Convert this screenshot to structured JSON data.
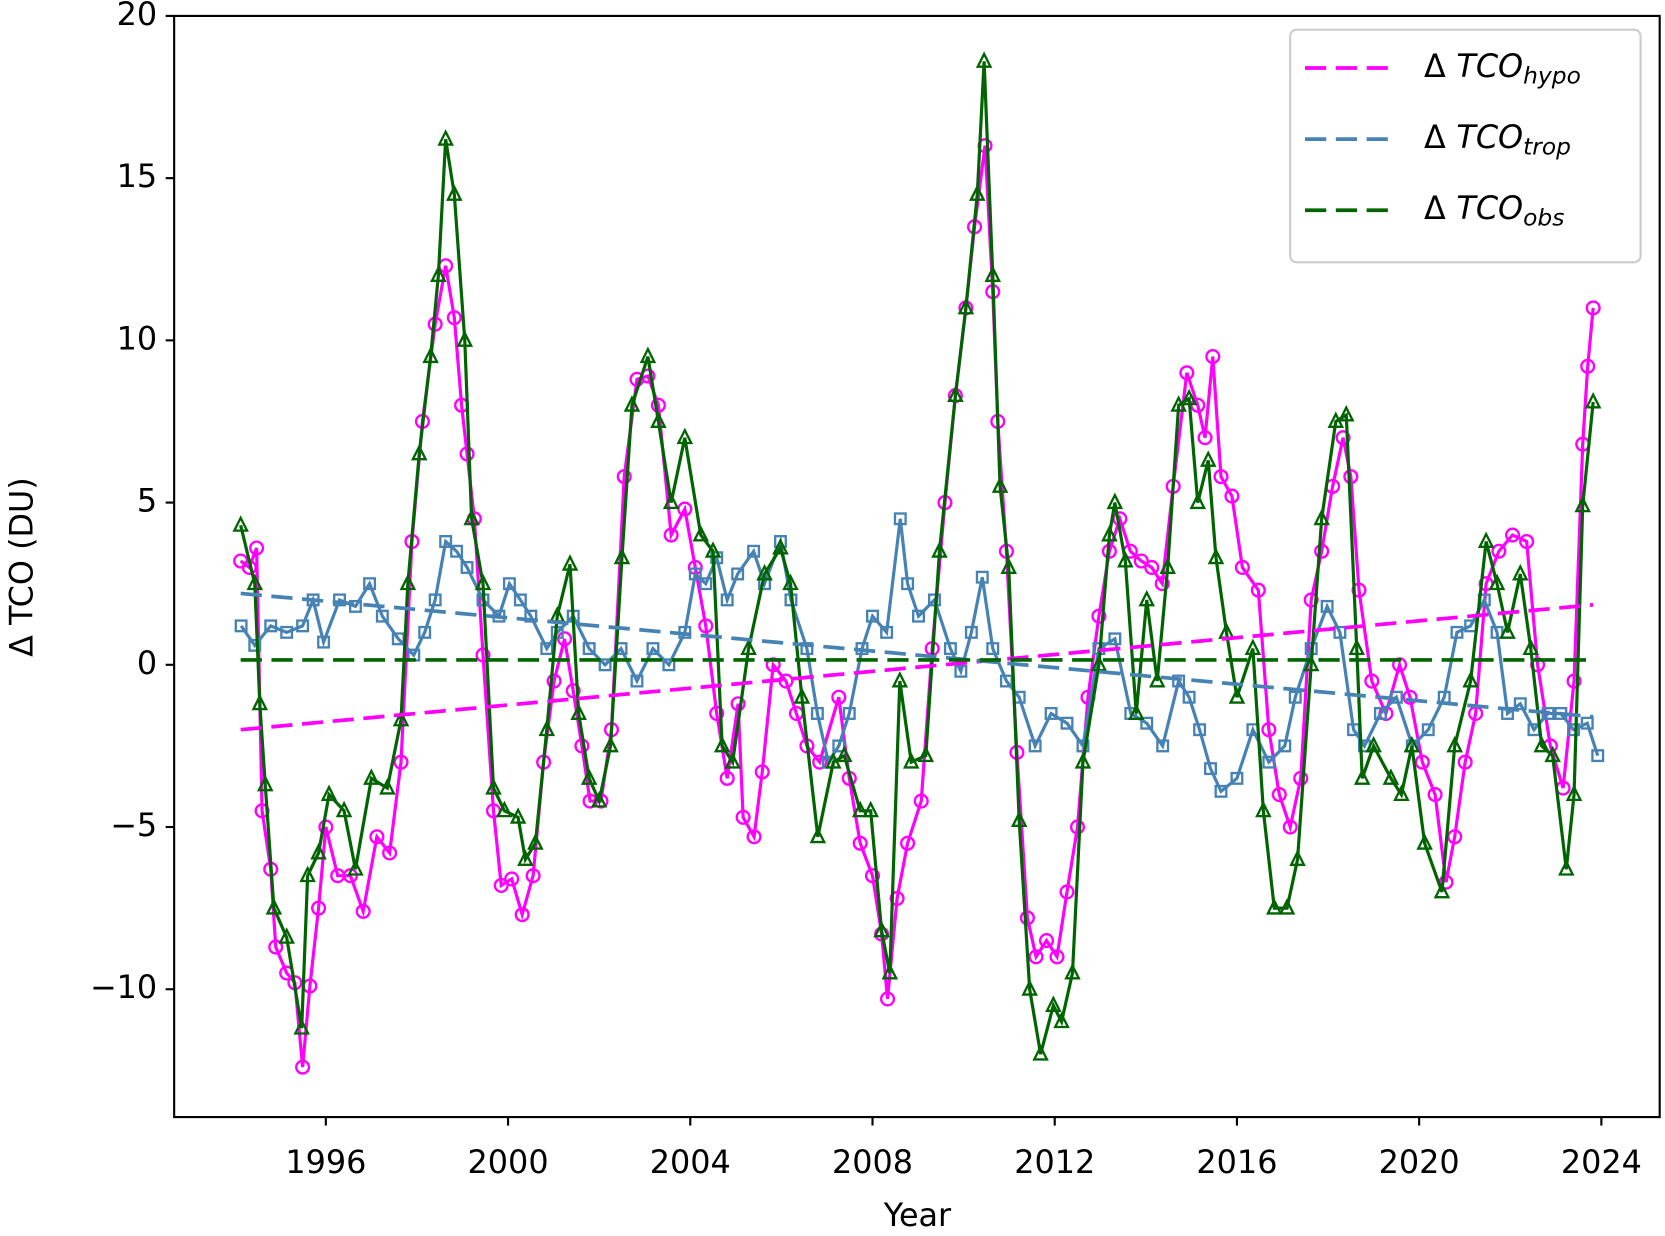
{
  "chart_data": {
    "type": "line",
    "xlabel": "Year",
    "ylabel": "Δ TCO (DU)",
    "xlim": [
      1992.67,
      2025.28
    ],
    "ylim": [
      -13.94,
      20
    ],
    "xticks": [
      1996,
      2000,
      2004,
      2008,
      2012,
      2016,
      2020,
      2024
    ],
    "yticks": [
      {
        "value": -10,
        "label": "−10"
      },
      {
        "value": -5,
        "label": "−5"
      },
      0,
      5,
      10,
      15,
      20
    ],
    "legend": "upper right",
    "trend_x": [
      1994.13,
      2023.82
    ],
    "series": [
      {
        "name_symbol": "Δ",
        "name": "TCO",
        "name_sub": "hypo",
        "color": "#ff00ff",
        "marker": "circle",
        "trend": [
          -2.0,
          1.85
        ],
        "x": [
          1994.13,
          1994.32,
          1994.48,
          1994.6,
          1994.79,
          1994.9,
          1995.14,
          1995.32,
          1995.49,
          1995.65,
          1995.84,
          1996.0,
          1996.26,
          1996.54,
          1996.82,
          1997.12,
          1997.4,
          1997.65,
          1997.89,
          1998.12,
          1998.4,
          1998.63,
          1998.82,
          1998.98,
          1999.1,
          1999.26,
          1999.45,
          1999.68,
          1999.85,
          2000.08,
          2000.31,
          2000.55,
          2000.78,
          2001.01,
          2001.24,
          2001.43,
          2001.62,
          2001.8,
          2002.04,
          2002.27,
          2002.55,
          2002.83,
          2003.07,
          2003.3,
          2003.58,
          2003.88,
          2004.11,
          2004.34,
          2004.58,
          2004.81,
          2005.05,
          2005.16,
          2005.4,
          2005.58,
          2005.82,
          2006.1,
          2006.33,
          2006.56,
          2006.84,
          2007.26,
          2007.49,
          2007.73,
          2008.0,
          2008.2,
          2008.33,
          2008.54,
          2008.77,
          2009.07,
          2009.31,
          2009.59,
          2009.82,
          2010.05,
          2010.24,
          2010.47,
          2010.64,
          2010.75,
          2010.94,
          2011.17,
          2011.4,
          2011.59,
          2011.82,
          2012.05,
          2012.27,
          2012.5,
          2012.73,
          2012.97,
          2013.2,
          2013.43,
          2013.66,
          2013.9,
          2014.13,
          2014.36,
          2014.6,
          2014.9,
          2015.14,
          2015.3,
          2015.47,
          2015.65,
          2015.89,
          2016.12,
          2016.47,
          2016.7,
          2016.93,
          2017.17,
          2017.4,
          2017.63,
          2017.86,
          2018.1,
          2018.33,
          2018.5,
          2018.68,
          2018.96,
          2019.27,
          2019.57,
          2019.8,
          2020.07,
          2020.35,
          2020.59,
          2020.78,
          2021.01,
          2021.24,
          2021.47,
          2021.75,
          2022.05,
          2022.36,
          2022.6,
          2022.88,
          2023.16,
          2023.4,
          2023.59,
          2023.7,
          2023.82
        ],
        "values": [
          3.2,
          3.0,
          3.6,
          -4.5,
          -6.3,
          -8.7,
          -9.5,
          -9.8,
          -12.4,
          -9.9,
          -7.5,
          -5.0,
          -6.5,
          -6.5,
          -7.6,
          -5.3,
          -5.8,
          -3.0,
          3.8,
          7.5,
          10.5,
          12.3,
          10.7,
          8.0,
          6.5,
          4.5,
          0.3,
          -4.5,
          -6.8,
          -6.6,
          -7.7,
          -6.5,
          -3.0,
          -0.5,
          0.8,
          -0.8,
          -2.5,
          -4.2,
          -4.2,
          -2.0,
          5.8,
          8.8,
          8.9,
          8.0,
          4.0,
          4.8,
          3.0,
          1.2,
          -1.5,
          -3.5,
          -1.2,
          -4.7,
          -5.3,
          -3.3,
          0.0,
          -0.5,
          -1.5,
          -2.5,
          -3.0,
          -1.0,
          -3.5,
          -5.5,
          -6.5,
          -8.3,
          -10.3,
          -7.2,
          -5.5,
          -4.2,
          0.5,
          5.0,
          8.3,
          11.0,
          13.5,
          16.0,
          11.5,
          7.5,
          3.5,
          -2.7,
          -7.8,
          -9.0,
          -8.5,
          -9.0,
          -7.0,
          -5.0,
          -1.0,
          1.5,
          3.5,
          4.5,
          3.5,
          3.2,
          3.0,
          2.5,
          5.5,
          9.0,
          8.0,
          7.0,
          9.5,
          5.8,
          5.2,
          3.0,
          2.3,
          -2.0,
          -4.0,
          -5.0,
          -3.5,
          2.0,
          3.5,
          5.5,
          7.0,
          5.8,
          2.3,
          -0.5,
          -1.5,
          0.0,
          -1.0,
          -3.0,
          -4.0,
          -6.7,
          -5.3,
          -3.0,
          -1.5,
          2.5,
          3.5,
          4.0,
          3.8,
          0.0,
          -2.5,
          -3.8,
          -0.5,
          6.8,
          9.2,
          11.0
        ]
      },
      {
        "name_symbol": "Δ",
        "name": "TCO",
        "name_sub": "trop",
        "color": "#4682b4",
        "marker": "square",
        "trend": [
          2.2,
          -1.6
        ],
        "x": [
          1994.14,
          1994.44,
          1994.79,
          1995.14,
          1995.49,
          1995.72,
          1995.95,
          1996.3,
          1996.65,
          1996.96,
          1997.24,
          1997.59,
          1997.93,
          1998.17,
          1998.4,
          1998.63,
          1998.87,
          1999.1,
          1999.45,
          1999.8,
          2000.03,
          2000.27,
          2000.5,
          2000.85,
          2001.08,
          2001.43,
          2001.78,
          2002.13,
          2002.48,
          2002.83,
          2003.18,
          2003.53,
          2003.88,
          2004.11,
          2004.34,
          2004.58,
          2004.81,
          2005.04,
          2005.39,
          2005.63,
          2005.98,
          2006.21,
          2006.56,
          2006.79,
          2007.03,
          2007.26,
          2007.49,
          2007.77,
          2008.0,
          2008.31,
          2008.61,
          2008.77,
          2009.01,
          2009.36,
          2009.71,
          2009.94,
          2010.17,
          2010.41,
          2010.64,
          2010.94,
          2011.22,
          2011.57,
          2011.92,
          2012.27,
          2012.62,
          2012.97,
          2013.32,
          2013.67,
          2014.02,
          2014.37,
          2014.72,
          2014.95,
          2015.18,
          2015.42,
          2015.65,
          2016.0,
          2016.35,
          2016.7,
          2017.05,
          2017.28,
          2017.63,
          2017.98,
          2018.26,
          2018.56,
          2018.8,
          2019.15,
          2019.5,
          2019.85,
          2020.2,
          2020.55,
          2020.83,
          2021.13,
          2021.43,
          2021.71,
          2021.94,
          2022.22,
          2022.52,
          2022.83,
          2023.11,
          2023.39,
          2023.69,
          2023.92
        ],
        "values": [
          1.2,
          0.6,
          1.2,
          1.0,
          1.2,
          2.0,
          0.7,
          2.0,
          1.8,
          2.5,
          1.5,
          0.8,
          0.3,
          1.0,
          2.0,
          3.8,
          3.5,
          3.0,
          2.0,
          1.5,
          2.5,
          2.0,
          1.5,
          0.5,
          1.0,
          1.5,
          0.5,
          0.0,
          0.5,
          -0.5,
          0.5,
          0.0,
          1.0,
          2.8,
          2.5,
          3.3,
          2.0,
          2.8,
          3.5,
          2.5,
          3.8,
          2.0,
          0.5,
          -1.5,
          -3.0,
          -2.5,
          -1.5,
          0.5,
          1.5,
          1.0,
          4.5,
          2.5,
          1.5,
          2.0,
          0.5,
          -0.2,
          1.0,
          2.7,
          0.5,
          -0.5,
          -1.0,
          -2.5,
          -1.5,
          -1.8,
          -2.5,
          0.5,
          0.8,
          -1.5,
          -1.8,
          -2.5,
          -0.5,
          -1.0,
          -2.0,
          -3.2,
          -3.9,
          -3.5,
          -2.0,
          -3.0,
          -2.5,
          -1.0,
          0.5,
          1.8,
          1.0,
          -2.0,
          -2.5,
          -1.5,
          -1.0,
          -2.5,
          -2.0,
          -1.0,
          1.0,
          1.2,
          2.0,
          1.0,
          -1.5,
          -1.2,
          -2.0,
          -1.5,
          -1.5,
          -2.0,
          -1.8,
          -2.8
        ]
      },
      {
        "name_symbol": "Δ",
        "name": "TCO",
        "name_sub": "obs",
        "color": "#006400",
        "marker": "triangle",
        "trend": [
          0.15,
          0.15
        ],
        "x": [
          1994.13,
          1994.44,
          1994.55,
          1994.67,
          1994.86,
          1995.14,
          1995.47,
          1995.6,
          1995.84,
          1996.07,
          1996.4,
          1996.65,
          1997.0,
          1997.35,
          1997.65,
          1997.8,
          1998.05,
          1998.3,
          1998.47,
          1998.63,
          1998.82,
          1999.05,
          1999.2,
          1999.45,
          1999.68,
          1999.92,
          2000.22,
          2000.38,
          2000.6,
          2000.85,
          2001.08,
          2001.36,
          2001.55,
          2001.78,
          2002.0,
          2002.25,
          2002.5,
          2002.72,
          2003.07,
          2003.3,
          2003.58,
          2003.88,
          2004.23,
          2004.5,
          2004.7,
          2004.93,
          2005.28,
          2005.63,
          2005.98,
          2006.2,
          2006.45,
          2006.8,
          2007.14,
          2007.38,
          2007.73,
          2007.96,
          2008.2,
          2008.38,
          2008.6,
          2008.85,
          2009.17,
          2009.47,
          2009.82,
          2010.05,
          2010.3,
          2010.45,
          2010.64,
          2010.8,
          2010.99,
          2011.22,
          2011.45,
          2011.69,
          2011.97,
          2012.15,
          2012.39,
          2012.62,
          2012.97,
          2013.2,
          2013.32,
          2013.55,
          2013.79,
          2014.02,
          2014.25,
          2014.48,
          2014.72,
          2014.95,
          2015.14,
          2015.37,
          2015.54,
          2015.77,
          2016.0,
          2016.35,
          2016.58,
          2016.82,
          2017.1,
          2017.33,
          2017.63,
          2017.86,
          2018.17,
          2018.4,
          2018.63,
          2018.75,
          2019.0,
          2019.38,
          2019.61,
          2019.84,
          2020.12,
          2020.5,
          2020.78,
          2021.13,
          2021.47,
          2021.71,
          2021.94,
          2022.22,
          2022.45,
          2022.69,
          2022.93,
          2023.23,
          2023.4,
          2023.59,
          2023.82
        ],
        "values": [
          4.3,
          2.5,
          -1.2,
          -3.7,
          -7.5,
          -8.4,
          -11.2,
          -6.5,
          -5.8,
          -4.0,
          -4.5,
          -6.3,
          -3.5,
          -3.8,
          -1.7,
          2.5,
          6.5,
          9.5,
          12.0,
          16.2,
          14.5,
          10.0,
          4.5,
          2.5,
          -3.8,
          -4.5,
          -4.7,
          -6.0,
          -5.5,
          -2.0,
          1.5,
          3.1,
          -1.5,
          -3.5,
          -4.2,
          -2.5,
          3.3,
          8.0,
          9.5,
          7.5,
          5.0,
          7.0,
          4.0,
          3.5,
          -2.5,
          -3.0,
          0.5,
          2.8,
          3.6,
          2.5,
          -1.0,
          -5.3,
          -3.0,
          -2.8,
          -4.5,
          -4.5,
          -8.2,
          -9.5,
          -0.5,
          -3.0,
          -2.8,
          3.5,
          8.3,
          11.0,
          14.5,
          18.6,
          12.0,
          5.5,
          3.0,
          -4.8,
          -10.0,
          -12.0,
          -10.5,
          -11.0,
          -9.5,
          -3.0,
          0.0,
          4.0,
          5.0,
          3.2,
          -1.5,
          2.0,
          -0.5,
          3.0,
          8.0,
          8.2,
          5.0,
          6.3,
          3.3,
          1.0,
          -1.0,
          0.5,
          -4.5,
          -7.5,
          -7.5,
          -6.0,
          0.0,
          4.5,
          7.5,
          7.7,
          0.5,
          -3.5,
          -2.5,
          -3.5,
          -4.0,
          -2.5,
          -5.5,
          -7.0,
          -2.5,
          -0.5,
          3.8,
          2.5,
          1.0,
          2.8,
          0.5,
          -2.5,
          -2.8,
          -6.3,
          -4.0,
          4.9,
          8.1
        ]
      }
    ]
  }
}
